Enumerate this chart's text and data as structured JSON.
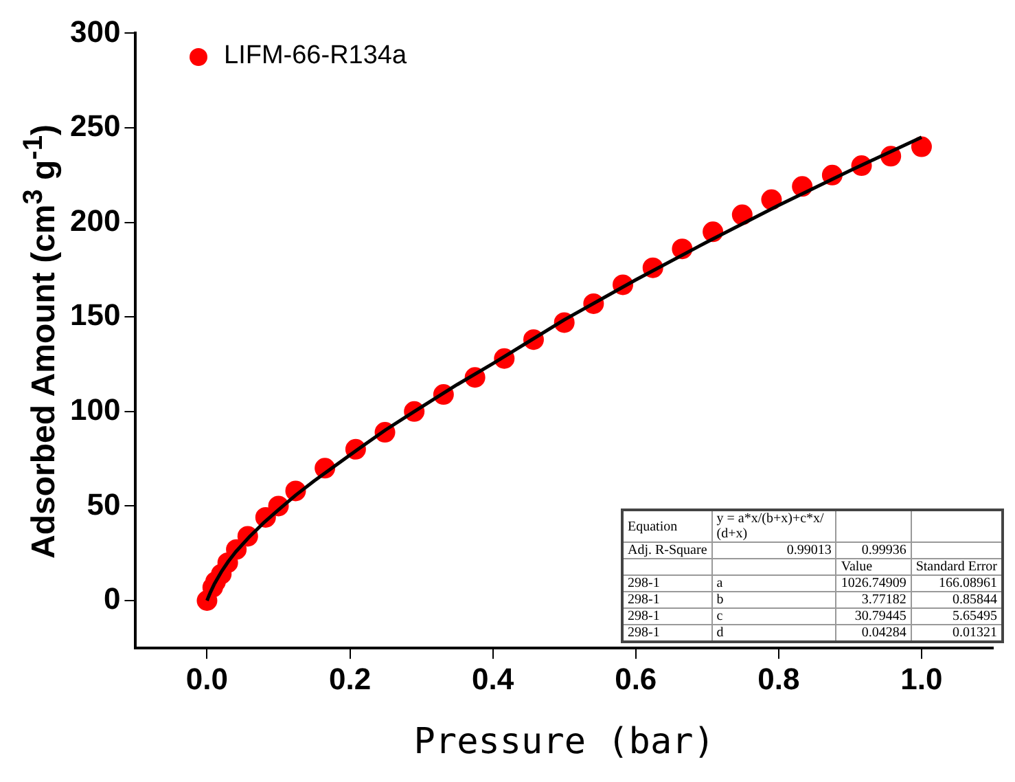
{
  "chart_data": {
    "type": "scatter",
    "xlabel": "Pressure (bar)",
    "ylabel": "Adsorbed Amount (cm$^{3}$ g$^{-1}$)",
    "xlim": [
      -0.1,
      1.1
    ],
    "xticks": [
      {
        "value": 0,
        "label": "0.0"
      },
      0.2,
      0.4,
      0.6,
      0.8,
      {
        "value": 1,
        "label": "1.0"
      }
    ],
    "ylim": [
      -25,
      300
    ],
    "yticks": [
      0,
      50,
      100,
      150,
      200,
      250,
      300
    ],
    "grid": false,
    "legend": "top left",
    "series": [
      {
        "name": "LIFM-66-R134a",
        "marker": "circle",
        "color": "#ff0000",
        "x": [
          0,
          0.008,
          0.012,
          0.02,
          0.029,
          0.041,
          0.057,
          0.082,
          0.1,
          0.124,
          0.165,
          0.208,
          0.249,
          0.29,
          0.331,
          0.375,
          0.416,
          0.457,
          0.5,
          0.541,
          0.582,
          0.624,
          0.665,
          0.708,
          0.749,
          0.79,
          0.833,
          0.875,
          0.916,
          0.957,
          1.0
        ],
        "values": [
          0,
          7,
          10,
          14,
          20,
          27,
          34,
          44,
          50,
          58,
          70,
          80,
          89,
          100,
          109,
          118,
          128,
          138,
          147,
          157,
          167,
          176,
          186,
          195,
          204,
          212,
          219,
          225,
          230,
          235,
          240
        ]
      },
      {
        "type": "line",
        "color": "#000000",
        "line_style": "solid",
        "x": [
          0,
          0.002,
          0.005,
          0.01,
          0.02,
          0.03,
          0.04,
          0.06,
          0.08,
          0.1,
          0.125,
          0.15,
          0.21,
          0.25,
          0.29,
          0.35,
          0.4,
          0.5,
          0.6,
          0.7,
          0.8,
          0.9,
          1.0
        ],
        "values": [
          0,
          1.9,
          4.6,
          8.6,
          15.2,
          20.8,
          25.7,
          34,
          41.4,
          48,
          56,
          63.3,
          79.7,
          90.3,
          100,
          114.2,
          125.3,
          148.5,
          169.6,
          189.7,
          209,
          227.4,
          245
        ]
      }
    ],
    "annotations": [
      "Equation",
      "y = a*x/(b+x)+c*x/(d+x)",
      null,
      null,
      "Adj. R-Square",
      "0.99013",
      "0.99936",
      null,
      null,
      null,
      "Value",
      "Standard Error",
      "298-1",
      "a",
      "1026.74909",
      "166.08961",
      "298-1",
      "b",
      "3.77182",
      "0.85844",
      "298-1",
      "c",
      "30.79445",
      "5.65495",
      "298-1",
      "d",
      "0.04284",
      "0.01321"
    ]
  }
}
